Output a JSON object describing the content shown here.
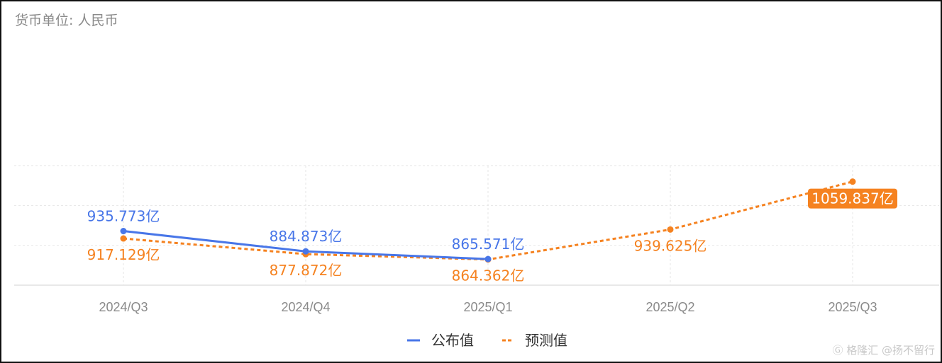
{
  "currency_unit": "货币单位: 人民币",
  "watermark": "Ⓖ 格隆汇 @扬不留行",
  "colors": {
    "published": "#4876e8",
    "forecast": "#f58220",
    "axis_text": "#8a8a8a",
    "grid": "#e6e6e6"
  },
  "chart_data": {
    "type": "line",
    "categories": [
      "2024/Q3",
      "2024/Q4",
      "2025/Q1",
      "2025/Q2",
      "2025/Q3"
    ],
    "ylim": [
      800,
      1100
    ],
    "grid": true,
    "legend_position": "bottom-center",
    "series": [
      {
        "name": "公布值",
        "line_style": "solid",
        "values": [
          935.773,
          884.873,
          865.571,
          null,
          null
        ],
        "labels": [
          "935.773亿",
          "884.873亿",
          "865.571亿",
          "",
          ""
        ]
      },
      {
        "name": "预测值",
        "line_style": "dashed",
        "values": [
          917.129,
          877.872,
          864.362,
          939.625,
          1059.837
        ],
        "labels": [
          "917.129亿",
          "877.872亿",
          "864.362亿",
          "939.625亿",
          "1059.837亿"
        ],
        "highlighted_label_index": 4
      }
    ]
  }
}
